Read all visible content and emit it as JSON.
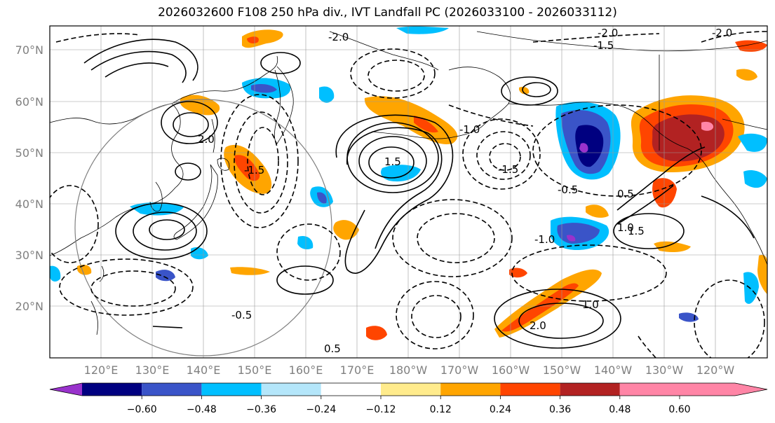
{
  "title": "2026032600 F108 250 hPa div., IVT Landfall PC (2026033100 - 2026033112)",
  "lat_labels": [
    "70°N",
    "60°N",
    "50°N",
    "40°N",
    "30°N",
    "20°N"
  ],
  "lon_labels": [
    "120°E",
    "130°E",
    "140°E",
    "150°E",
    "160°E",
    "170°E",
    "180°W",
    "170°W",
    "160°W",
    "150°W",
    "140°W",
    "130°W",
    "120°W"
  ],
  "colorbar": {
    "colors": [
      "#9932cc",
      "#000080",
      "#3a54c8",
      "#00bfff",
      "#b4e6fa",
      "#ffffff",
      "#ffeb8c",
      "#ffa500",
      "#ff4500",
      "#b22222",
      "#ff85a6"
    ],
    "ticks": [
      "−0.60",
      "−0.48",
      "−0.36",
      "−0.24",
      "−0.12",
      "0.12",
      "0.24",
      "0.36",
      "0.48",
      "0.60"
    ]
  },
  "contour_labels": [
    "-2.0",
    "-1.5",
    "-1.0",
    "-0.5",
    "0.5",
    "1.0",
    "1.5",
    "2.0",
    "-2.0",
    "-1.5",
    "-0.5",
    "1.0",
    "2.0",
    "-1.0",
    "0.5",
    "-1.5",
    "1.5",
    "-2.0"
  ],
  "colors": {
    "axis": "#808080",
    "grid": "#9a9a9a"
  }
}
